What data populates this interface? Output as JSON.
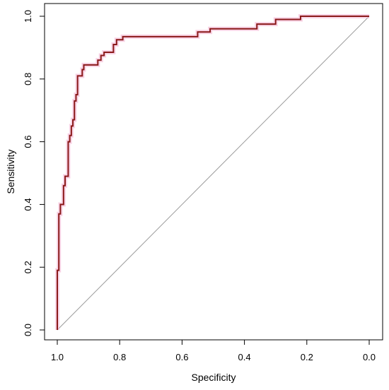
{
  "chart_data": {
    "type": "line",
    "title": "",
    "xlabel": "Specificity",
    "ylabel": "Sensitivity",
    "x_reversed": true,
    "xlim": [
      1.0,
      0.0
    ],
    "ylim": [
      0.0,
      1.0
    ],
    "xticks": [
      1.0,
      0.8,
      0.6,
      0.4,
      0.2,
      0.0
    ],
    "yticks": [
      0.0,
      0.2,
      0.4,
      0.6,
      0.8,
      1.0
    ],
    "xtick_labels": [
      "1.0",
      "0.8",
      "0.6",
      "0.4",
      "0.2",
      "0.0"
    ],
    "ytick_labels": [
      "0.0",
      "0.2",
      "0.4",
      "0.6",
      "0.8",
      "1.0"
    ],
    "grid": false,
    "legend": false,
    "colors": {
      "roc": "#8b1a1a",
      "roc_halo": "#f3b6d3",
      "diagonal": "#9a9a9a",
      "axis": "#000000"
    },
    "series": [
      {
        "points": [
          [
            1.0,
            0.0
          ],
          [
            1.0,
            0.19
          ],
          [
            0.995,
            0.19
          ],
          [
            0.995,
            0.37
          ],
          [
            0.99,
            0.37
          ],
          [
            0.99,
            0.4
          ],
          [
            0.98,
            0.4
          ],
          [
            0.98,
            0.46
          ],
          [
            0.975,
            0.46
          ],
          [
            0.975,
            0.49
          ],
          [
            0.965,
            0.49
          ],
          [
            0.965,
            0.6
          ],
          [
            0.96,
            0.6
          ],
          [
            0.96,
            0.62
          ],
          [
            0.955,
            0.62
          ],
          [
            0.955,
            0.65
          ],
          [
            0.95,
            0.65
          ],
          [
            0.95,
            0.67
          ],
          [
            0.945,
            0.67
          ],
          [
            0.945,
            0.73
          ],
          [
            0.94,
            0.73
          ],
          [
            0.94,
            0.75
          ],
          [
            0.935,
            0.75
          ],
          [
            0.935,
            0.81
          ],
          [
            0.92,
            0.81
          ],
          [
            0.92,
            0.83
          ],
          [
            0.915,
            0.83
          ],
          [
            0.915,
            0.845
          ],
          [
            0.87,
            0.845
          ],
          [
            0.87,
            0.86
          ],
          [
            0.86,
            0.86
          ],
          [
            0.86,
            0.875
          ],
          [
            0.85,
            0.875
          ],
          [
            0.85,
            0.885
          ],
          [
            0.82,
            0.885
          ],
          [
            0.82,
            0.91
          ],
          [
            0.81,
            0.91
          ],
          [
            0.81,
            0.925
          ],
          [
            0.79,
            0.925
          ],
          [
            0.79,
            0.935
          ],
          [
            0.55,
            0.935
          ],
          [
            0.55,
            0.95
          ],
          [
            0.51,
            0.95
          ],
          [
            0.51,
            0.96
          ],
          [
            0.36,
            0.96
          ],
          [
            0.36,
            0.975
          ],
          [
            0.3,
            0.975
          ],
          [
            0.3,
            0.99
          ],
          [
            0.22,
            0.99
          ],
          [
            0.22,
            1.0
          ],
          [
            0.0,
            1.0
          ]
        ]
      },
      {
        "points": [
          [
            1.0,
            0.0
          ],
          [
            0.0,
            1.0
          ]
        ]
      }
    ]
  }
}
